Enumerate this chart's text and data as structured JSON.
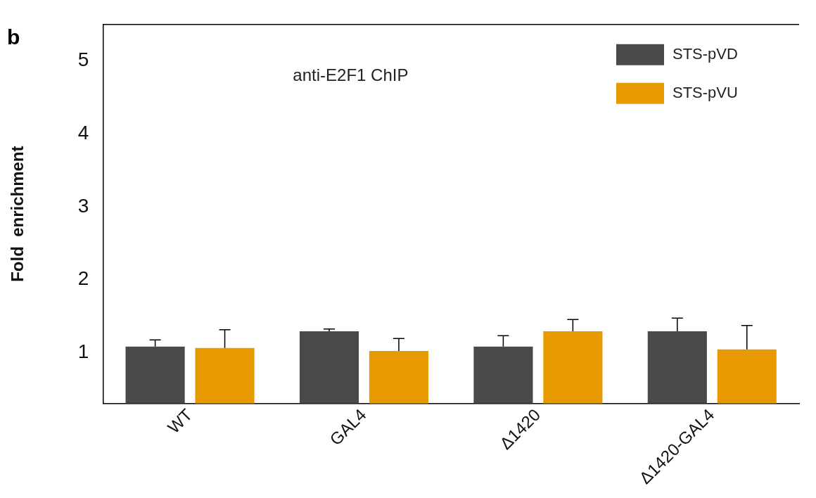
{
  "chart_data": {
    "type": "bar",
    "categories": [
      "WT",
      "GAL4",
      "Δ1420",
      "Δ1420-GAL4"
    ],
    "series": [
      {
        "name": "STS-pVD",
        "color": "#4a4a4a",
        "values": [
          1.08,
          1.29,
          1.08,
          1.29
        ],
        "errors": [
          [
            1.08,
            1.17
          ],
          [
            1.29,
            1.32
          ],
          [
            1.08,
            1.23
          ],
          [
            1.29,
            1.47
          ]
        ]
      },
      {
        "name": "STS-pVU",
        "color": "#e69a00",
        "values": [
          1.06,
          1.02,
          1.29,
          1.04
        ],
        "errors": [
          [
            1.06,
            1.31
          ],
          [
            1.02,
            1.19
          ],
          [
            1.29,
            1.45
          ],
          [
            1.04,
            1.37
          ]
        ]
      }
    ],
    "ylabel": "Fold  enrichment",
    "ylim": [
      0.3,
      5.5
    ],
    "yticks": [
      1,
      2,
      3,
      4,
      5
    ],
    "annotations": [
      "b",
      "anti-E2F1 ChIP"
    ],
    "legend": "top right",
    "grid": false
  }
}
